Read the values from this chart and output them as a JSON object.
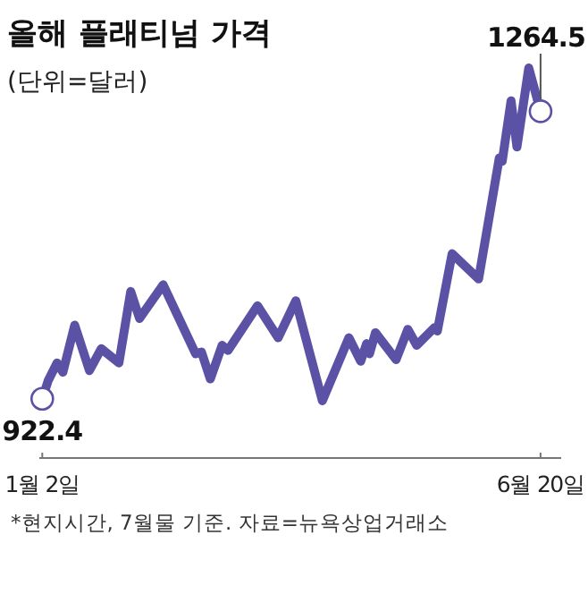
{
  "chart_data": {
    "type": "line",
    "title": "올해 플래티넘 가격",
    "subtitle": "(단위=달러)",
    "annotations": [
      "*현지시간, 7월물 기준. 자료=뉴욕상업거래소"
    ],
    "x": [
      "--01-02",
      "--01-04",
      "--01-07",
      "--01-09",
      "--01-13",
      "--01-18",
      "--01-22",
      "--01-28",
      "--02-01",
      "--02-04",
      "--02-12",
      "--02-23",
      "--02-25",
      "--02-28",
      "--03-04",
      "--03-06",
      "--03-16",
      "--03-23",
      "--03-29",
      "--04-07",
      "--04-16",
      "--04-20",
      "--04-22",
      "--04-23",
      "--04-25",
      "--05-02",
      "--05-06",
      "--05-09",
      "--05-15",
      "--05-16",
      "--05-21",
      "--05-30",
      "--06-06",
      "--06-07",
      "--06-10",
      "--06-12",
      "--06-16",
      "--06-20"
    ],
    "series": [
      {
        "color": "#5b52a6",
        "values": [
          922.4,
          944,
          965,
          954,
          1010,
          956,
          982,
          965,
          1050,
          1018,
          1058,
          976,
          978,
          946,
          986,
          980,
          1033,
          995,
          1039,
          920,
          995,
          967,
          988,
          976,
          1001,
          969,
          1005,
          986,
          1007,
          1003,
          1095,
          1065,
          1209,
          1205,
          1277,
          1222,
          1316,
          1264.5
        ],
        "value_labels": [
          "922.4",
          null,
          null,
          null,
          null,
          null,
          null,
          null,
          null,
          null,
          null,
          null,
          null,
          null,
          null,
          null,
          null,
          null,
          null,
          null,
          null,
          null,
          null,
          null,
          null,
          null,
          null,
          null,
          null,
          null,
          null,
          null,
          null,
          null,
          null,
          null,
          null,
          "1264.5"
        ]
      }
    ],
    "xlim": [
      "--01-01",
      "--06-27"
    ],
    "xticks": [
      {
        "value": "--01-02",
        "label": "1월 2일"
      },
      {
        "value": "--06-20",
        "label": "6월 20일"
      }
    ],
    "marker": "none",
    "line_style": "solid",
    "legend": false,
    "grid": false
  }
}
